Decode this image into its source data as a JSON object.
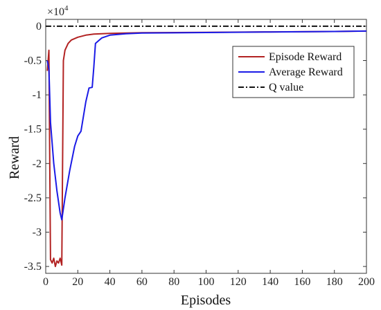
{
  "chart_data": {
    "type": "line",
    "title": "",
    "xlabel": "Episodes",
    "ylabel": "Reward",
    "y_exponent_label": "×10",
    "y_exponent_power": "4",
    "xlim": [
      0,
      200
    ],
    "ylim": [
      -36000,
      1000
    ],
    "x_ticks": [
      0,
      20,
      40,
      60,
      80,
      100,
      120,
      140,
      160,
      180,
      200
    ],
    "y_ticks": [
      0,
      -5000,
      -10000,
      -15000,
      -20000,
      -25000,
      -30000,
      -35000
    ],
    "x_tick_labels": [
      "0",
      "20",
      "40",
      "60",
      "80",
      "100",
      "120",
      "140",
      "160",
      "180",
      "200"
    ],
    "y_tick_labels": [
      "0",
      "-0.5",
      "-1",
      "-1.5",
      "-2",
      "-2.5",
      "-3",
      "-3.5"
    ],
    "grid": false,
    "legend_position": "top-right",
    "series": [
      {
        "name": "Episode Reward",
        "color": "#b22222",
        "style": "solid",
        "points": [
          [
            1,
            -6500
          ],
          [
            2,
            -3500
          ],
          [
            3,
            -34000
          ],
          [
            4,
            -34500
          ],
          [
            5,
            -33800
          ],
          [
            6,
            -35000
          ],
          [
            7,
            -34200
          ],
          [
            8,
            -34500
          ],
          [
            9,
            -33800
          ],
          [
            10,
            -34800
          ],
          [
            11,
            -5000
          ],
          [
            12,
            -3500
          ],
          [
            14,
            -2500
          ],
          [
            16,
            -2000
          ],
          [
            20,
            -1600
          ],
          [
            25,
            -1300
          ],
          [
            30,
            -1150
          ],
          [
            40,
            -1050
          ],
          [
            60,
            -950
          ],
          [
            100,
            -900
          ],
          [
            140,
            -820
          ],
          [
            180,
            -760
          ],
          [
            200,
            -700
          ]
        ]
      },
      {
        "name": "Average Reward",
        "color": "#1a1ae6",
        "style": "solid",
        "points": [
          [
            1,
            -5000
          ],
          [
            2,
            -6200
          ],
          [
            3,
            -14000
          ],
          [
            5,
            -20000
          ],
          [
            7,
            -24000
          ],
          [
            9,
            -27200
          ],
          [
            10,
            -28200
          ],
          [
            12,
            -25000
          ],
          [
            15,
            -21000
          ],
          [
            18,
            -17500
          ],
          [
            20,
            -16000
          ],
          [
            22,
            -15300
          ],
          [
            25,
            -11000
          ],
          [
            27,
            -9000
          ],
          [
            29,
            -8900
          ],
          [
            30,
            -6000
          ],
          [
            31,
            -2500
          ],
          [
            35,
            -1700
          ],
          [
            40,
            -1300
          ],
          [
            50,
            -1100
          ],
          [
            60,
            -1000
          ],
          [
            100,
            -920
          ],
          [
            140,
            -830
          ],
          [
            180,
            -760
          ],
          [
            200,
            -700
          ]
        ]
      },
      {
        "name": "Q value",
        "color": "#111111",
        "style": "dashdot",
        "points": [
          [
            0,
            0
          ],
          [
            200,
            0
          ]
        ]
      }
    ]
  }
}
